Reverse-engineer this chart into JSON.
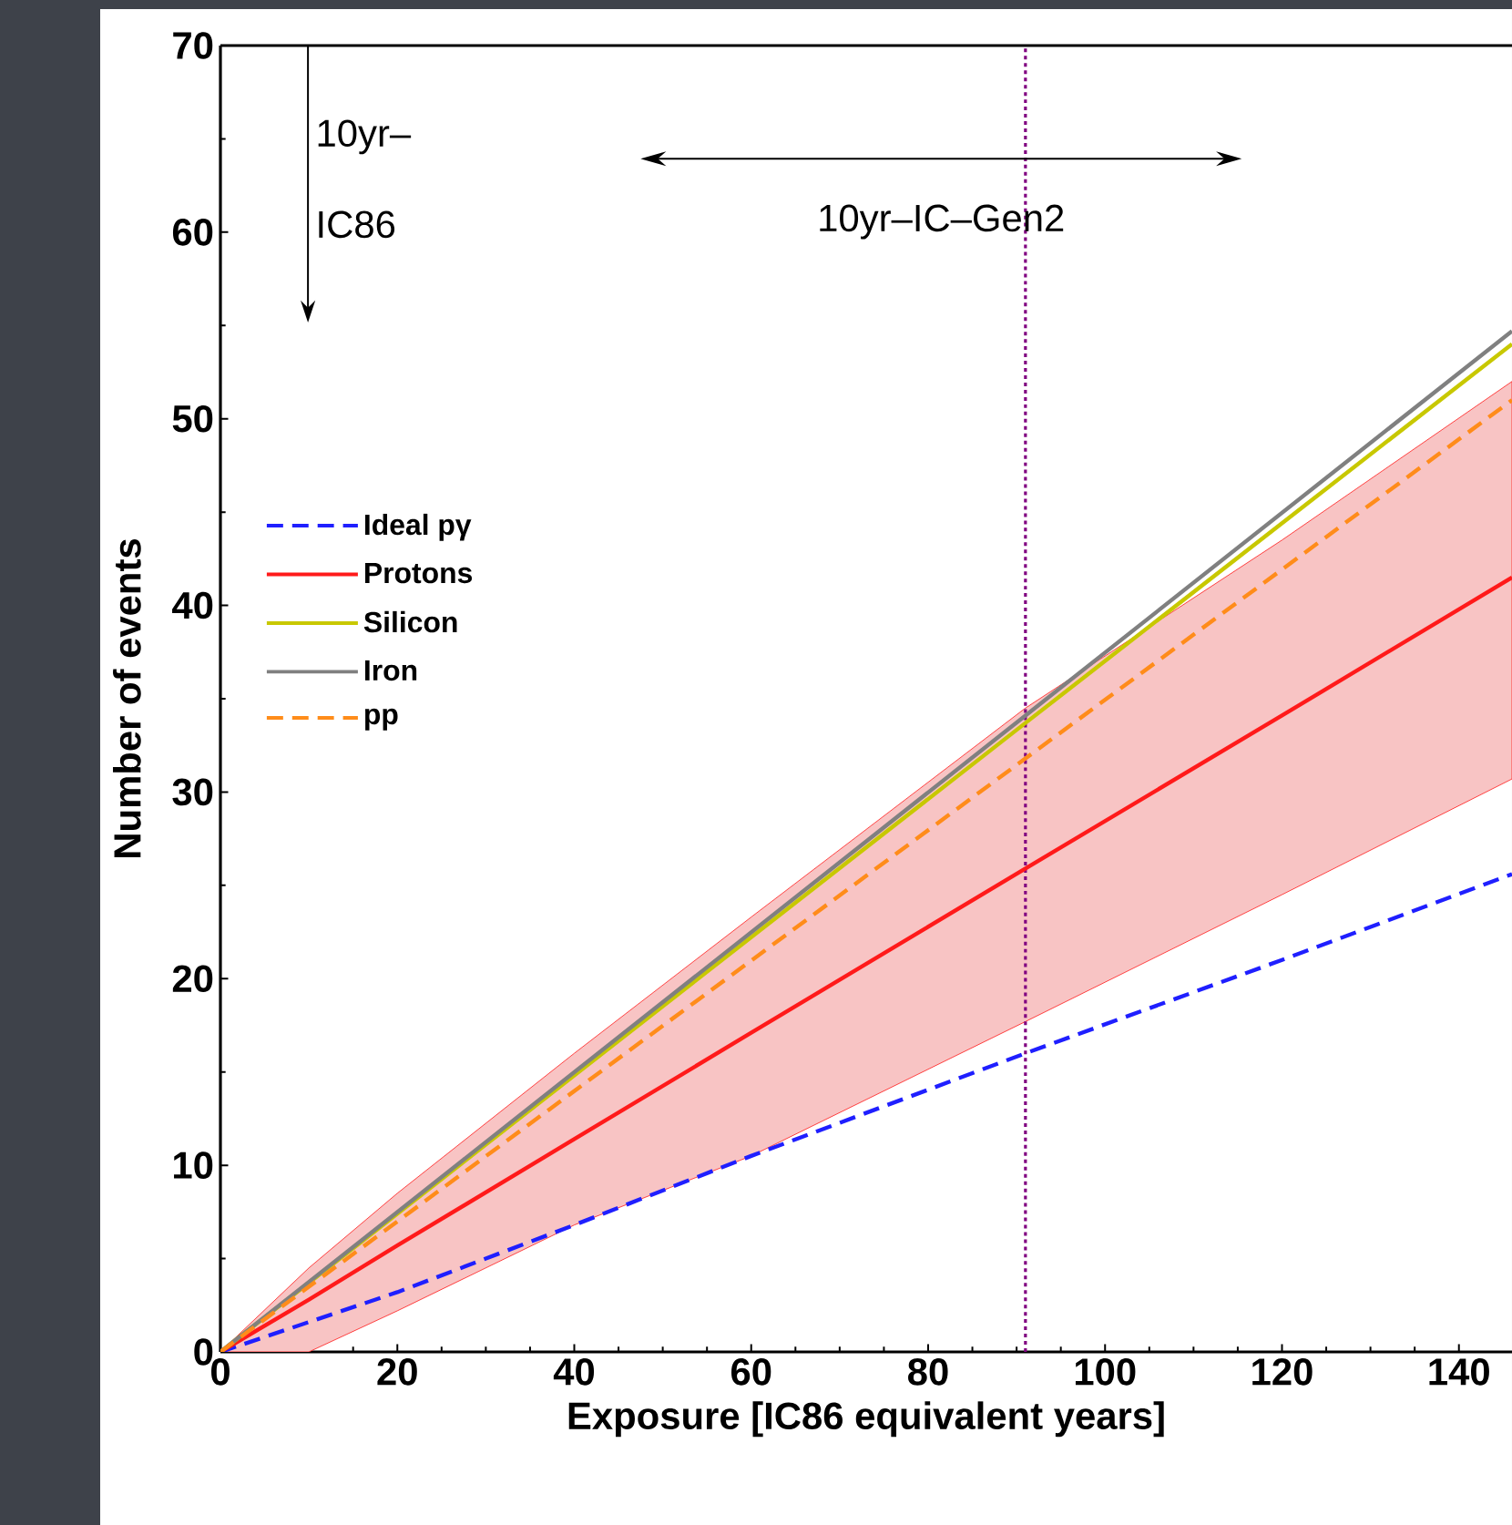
{
  "chart_data": {
    "type": "line",
    "xlabel": "Exposure [IC86 equivalent years]",
    "ylabel": "Number of events",
    "xlim": [
      0,
      146
    ],
    "ylim": [
      0,
      70
    ],
    "xticks": [
      0,
      20,
      40,
      60,
      80,
      100,
      120,
      140
    ],
    "yticks": [
      0,
      10,
      20,
      30,
      40,
      50,
      60,
      70
    ],
    "grid": false,
    "legend": "left",
    "marker": "none",
    "series": [
      {
        "name": "Ideal pγ",
        "color": "#1f1fff",
        "line_style": "dashed",
        "x": [
          0,
          20,
          40,
          60,
          91,
          120,
          146
        ],
        "values": [
          0,
          3.2,
          6.8,
          10.5,
          16,
          21,
          25.6
        ]
      },
      {
        "name": "Protons",
        "color": "#ff1a1a",
        "line_style": "solid",
        "x": [
          0,
          10,
          20,
          40,
          60,
          91,
          120,
          146
        ],
        "values": [
          0,
          2.8,
          5.7,
          11.4,
          17.1,
          25.9,
          34.1,
          41.5
        ],
        "lower": [
          0,
          0,
          2.2,
          6.8,
          10.5,
          17.7,
          24.5,
          30.7
        ],
        "upper": [
          0,
          4.5,
          8.5,
          16,
          23.3,
          34.5,
          43.5,
          52
        ]
      },
      {
        "name": "Silicon",
        "color": "#c8c800",
        "line_style": "solid",
        "x": [
          0,
          91,
          146
        ],
        "values": [
          0,
          33.7,
          54
        ]
      },
      {
        "name": "Iron",
        "color": "#808080",
        "line_style": "solid",
        "x": [
          0,
          91,
          146
        ],
        "values": [
          0,
          34.1,
          54.7
        ]
      },
      {
        "name": "pp",
        "color": "#ff8c1a",
        "line_style": "dashed",
        "x": [
          0,
          91,
          146
        ],
        "values": [
          0,
          31.8,
          51
        ]
      }
    ],
    "ref_lines": [
      {
        "axis": "x",
        "value": 91,
        "color": "#800080",
        "line_style": "dotted"
      }
    ],
    "annotations": [
      "10yr–",
      "IC86",
      "10yr–IC–Gen2"
    ]
  }
}
